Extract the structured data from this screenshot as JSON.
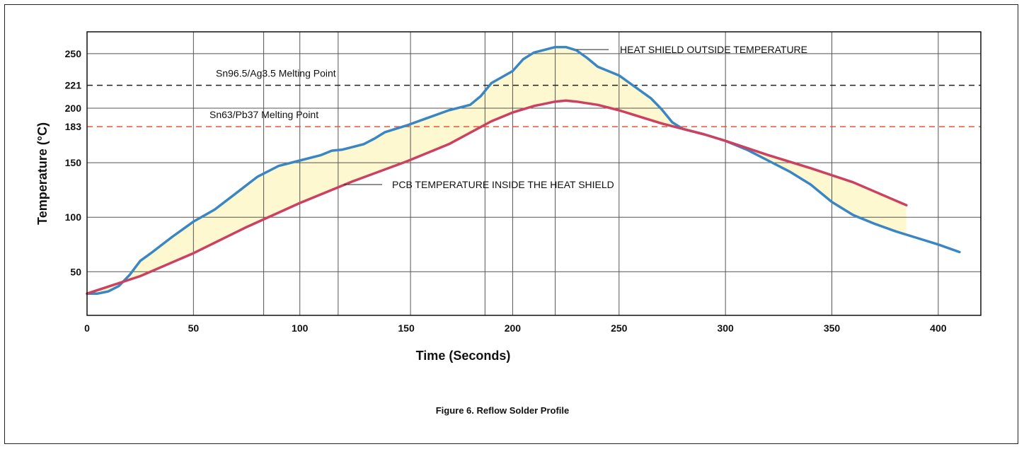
{
  "chart_data": {
    "type": "line",
    "caption": "Figure 6. Reflow Solder Profile",
    "xlabel": "Time (Seconds)",
    "ylabel": "Temperature (°C)",
    "xlim": [
      0,
      420
    ],
    "ylim": [
      10,
      270
    ],
    "x_ticks": [
      0,
      50,
      100,
      150,
      200,
      250,
      300,
      350,
      400
    ],
    "y_ticks": [
      50,
      100,
      150,
      183,
      200,
      221,
      250
    ],
    "grid": true,
    "x_gridlines": [
      0,
      50,
      83,
      100,
      118,
      152,
      187,
      200,
      220,
      250,
      300,
      350,
      400
    ],
    "y_gridlines": [
      50,
      100,
      150,
      200,
      250
    ],
    "reference_lines": [
      {
        "label": "Sn96.5/Ag3.5 Melting Point",
        "y": 221,
        "color": "#222222"
      },
      {
        "label": "Sn63/Pb37 Melting Point",
        "y": 183,
        "color": "#e8543a"
      }
    ],
    "series": [
      {
        "name": "HEAT SHIELD OUTSIDE TEMPERATURE",
        "color": "#3a86c4",
        "x": [
          0,
          5,
          10,
          15,
          20,
          25,
          30,
          40,
          50,
          60,
          70,
          80,
          90,
          100,
          110,
          115,
          120,
          130,
          135,
          140,
          150,
          160,
          170,
          180,
          185,
          190,
          200,
          205,
          210,
          220,
          225,
          230,
          235,
          240,
          250,
          260,
          265,
          270,
          275,
          280,
          290,
          300,
          310,
          320,
          330,
          340,
          350,
          360,
          370,
          380,
          390,
          400,
          410
        ],
        "y": [
          30,
          30,
          32,
          37,
          47,
          60,
          67,
          82,
          96,
          107,
          122,
          137,
          147,
          152,
          157,
          161,
          162,
          167,
          172,
          178,
          184,
          191,
          198,
          203,
          211,
          223,
          234,
          245,
          251,
          256,
          256,
          253,
          246,
          238,
          230,
          216,
          209,
          199,
          187,
          181,
          176,
          170,
          162,
          152,
          142,
          130,
          114,
          102,
          94,
          87,
          81,
          75,
          68
        ]
      },
      {
        "name": "PCB TEMPERATURE INSIDE THE HEAT SHIELD",
        "color": "#cc4060",
        "x": [
          0,
          25,
          50,
          75,
          100,
          125,
          150,
          170,
          190,
          200,
          210,
          220,
          225,
          230,
          240,
          250,
          260,
          270,
          280,
          290,
          300,
          320,
          340,
          360,
          385
        ],
        "y": [
          30,
          46,
          67,
          91,
          113,
          133,
          151,
          167,
          188,
          196,
          202,
          206,
          207,
          206,
          203,
          198,
          192,
          186,
          181,
          176,
          170,
          157,
          145,
          132,
          111
        ]
      }
    ],
    "annotations": [
      {
        "text": "HEAT SHIELD OUTSIDE TEMPERATURE",
        "series": 0,
        "point": [
          228,
          255
        ]
      },
      {
        "text": "PCB TEMPERATURE INSIDE THE HEAT SHIELD",
        "series": 1,
        "point": [
          118,
          128
        ]
      }
    ],
    "fill_between_series": {
      "color": "#fdf8cf"
    }
  }
}
